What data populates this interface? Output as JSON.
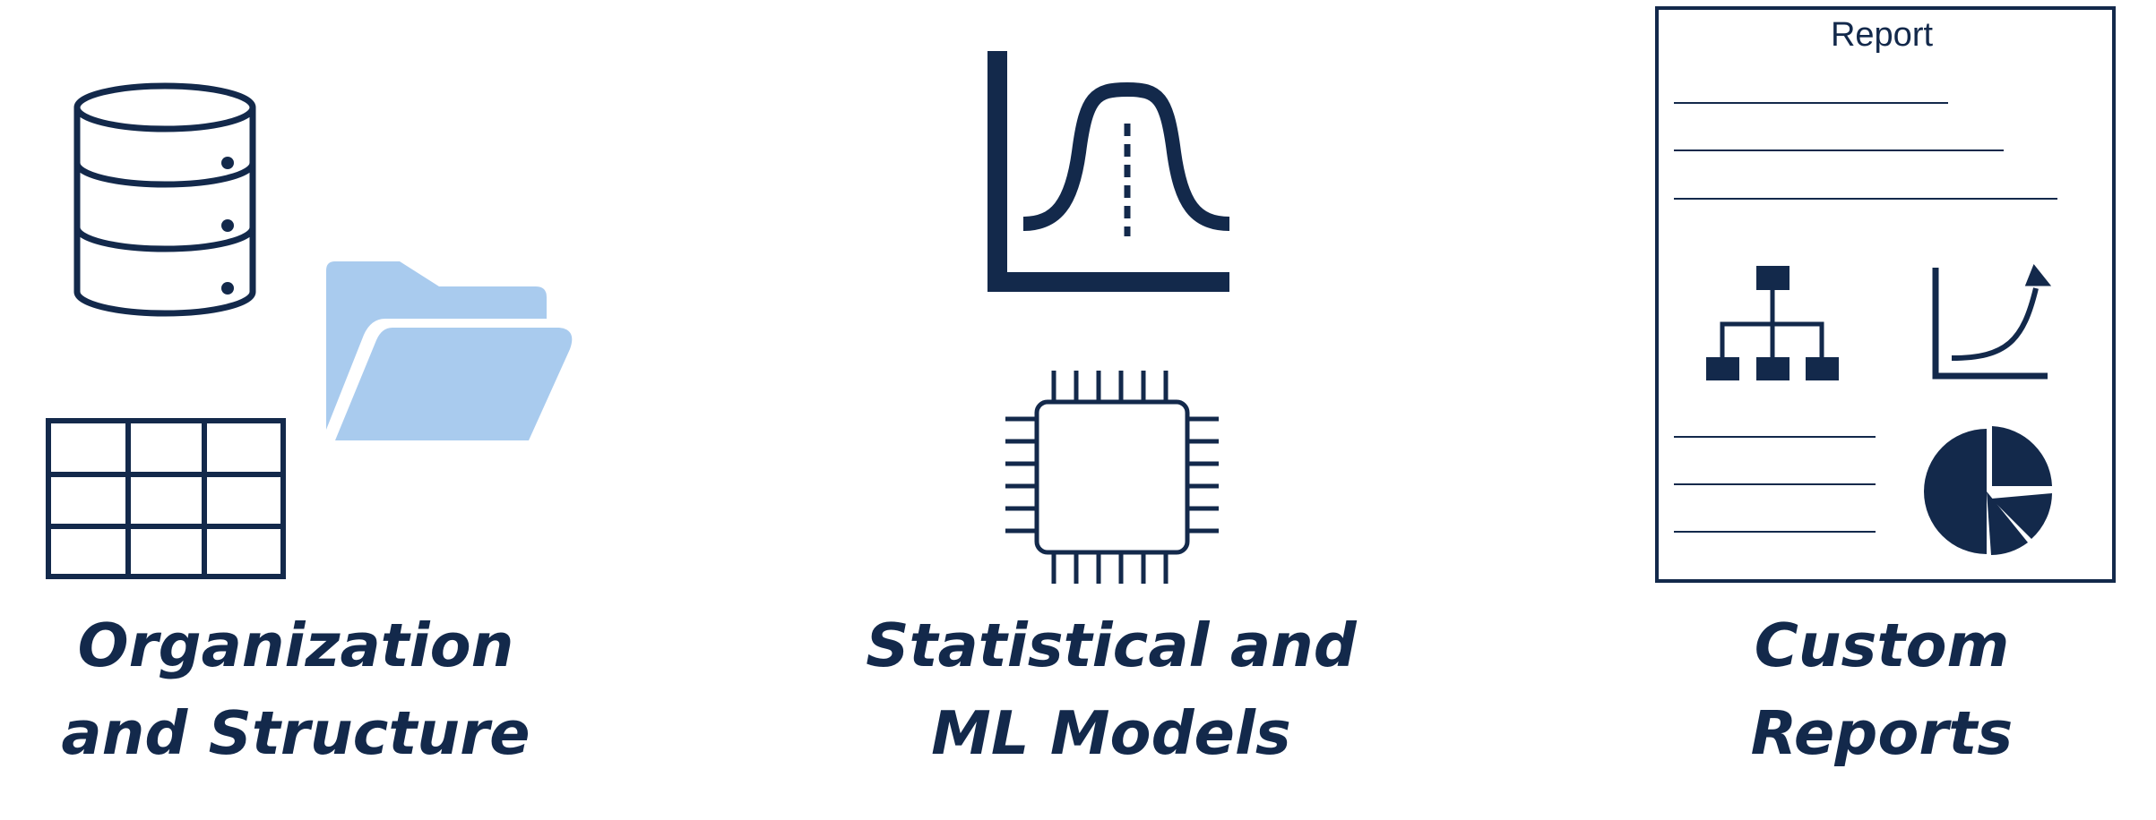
{
  "colors": {
    "navy": "#13294B",
    "folder": "#A9CBEE",
    "background": "#FFFFFF"
  },
  "panels": [
    {
      "id": "organization",
      "caption_line1": "Organization",
      "caption_line2": "and Structure",
      "icons": [
        "database-icon",
        "folder-icon",
        "table-grid-icon"
      ]
    },
    {
      "id": "models",
      "caption_line1": "Statistical and",
      "caption_line2": "ML Models",
      "icons": [
        "bell-curve-chart-icon",
        "processor-chip-icon"
      ]
    },
    {
      "id": "reports",
      "caption_line1": "Custom",
      "caption_line2": "Reports",
      "report_title": "Report",
      "icons": [
        "report-document-icon",
        "org-chart-icon",
        "growth-curve-icon",
        "pie-chart-icon"
      ]
    }
  ]
}
